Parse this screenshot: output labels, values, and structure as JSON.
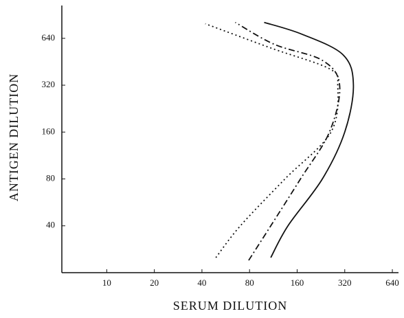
{
  "chart_data": {
    "type": "line",
    "xlabel": "SERUM DILUTION",
    "ylabel": "ANTIGEN DILUTION",
    "xscale": "log",
    "yscale": "log",
    "xlim": [
      5.2,
      700
    ],
    "ylim": [
      20,
      1040
    ],
    "xticks": [
      10,
      20,
      40,
      80,
      160,
      320,
      640
    ],
    "yticks": [
      40,
      80,
      160,
      320,
      640
    ],
    "series": [
      {
        "color": "#111111",
        "dash": "solid",
        "x": [
          109,
          140,
          231,
          320,
          363,
          312,
          171,
          99
        ],
        "values": [
          25,
          40,
          80,
          160,
          320,
          502,
          681,
          810
        ]
      },
      {
        "color": "#111111",
        "dash": "dashdot",
        "x": [
          79,
          109,
          168,
          256,
          297,
          231,
          115,
          65
        ],
        "values": [
          24,
          40,
          80,
          160,
          320,
          462,
          585,
          810
        ]
      },
      {
        "color": "#111111",
        "dash": "dotted",
        "x": [
          49,
          70,
          134,
          262,
          289,
          256,
          110,
          42
        ],
        "values": [
          25,
          40,
          80,
          160,
          320,
          408,
          553,
          794
        ]
      }
    ]
  }
}
